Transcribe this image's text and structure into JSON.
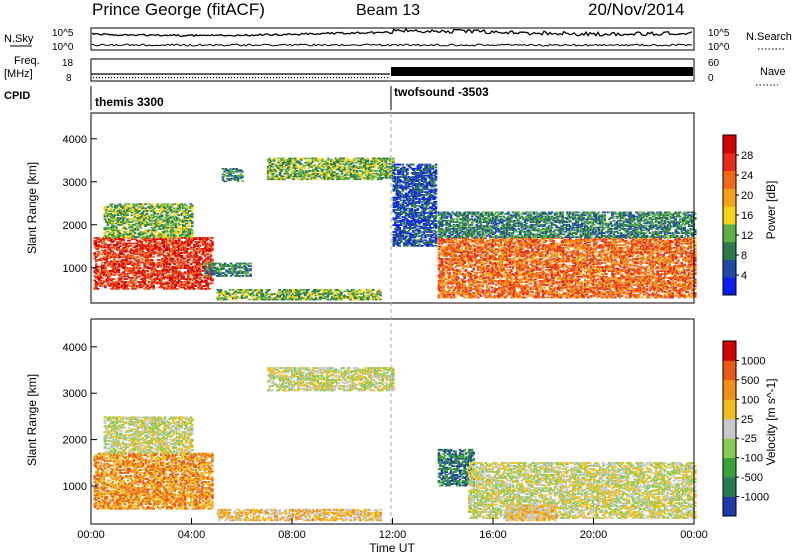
{
  "header": {
    "station": "Prince George (fitACF)",
    "beam": "Beam 13",
    "date": "20/Nov/2014"
  },
  "top_panels": {
    "nsky_label": "N.Sky",
    "nsky_ticks": [
      "10^5",
      "10^0"
    ],
    "nsearch_label": "N.Search",
    "nsearch_ticks": [
      "10^5",
      "10^0"
    ],
    "freq_label": "Freq.",
    "freq_unit": "[MHz]",
    "freq_ticks": [
      "18",
      "8"
    ],
    "nave_label": "Nave",
    "nave_ticks": [
      "60",
      "0"
    ],
    "cpid_label": "CPID",
    "cpid_modes": [
      {
        "name": "themis 3300",
        "start_hour": 0
      },
      {
        "name": "twofsound -3503",
        "start_hour": 12
      }
    ]
  },
  "chart_data": [
    {
      "type": "heatmap",
      "name": "power-panel",
      "ylabel": "Slant Range [km]",
      "ylim": [
        180,
        4600
      ],
      "yticks": [
        "4000",
        "3000",
        "2000",
        "1000"
      ],
      "xlim": [
        0,
        24
      ],
      "colorbar": {
        "label": "Power [dB]",
        "ticks": [
          "28",
          "24",
          "20",
          "16",
          "12",
          "8",
          "4"
        ],
        "colors": [
          "#0a1cf0",
          "#1f4aa8",
          "#2c7a4a",
          "#5cae46",
          "#f2d21a",
          "#f5a21a",
          "#f26a18",
          "#e82a1a",
          "#d40000"
        ]
      },
      "regions": [
        {
          "t0": 0.1,
          "t1": 4.8,
          "r0": 500,
          "r1": 1700,
          "level": 7
        },
        {
          "t0": 0.5,
          "t1": 4.0,
          "r0": 1700,
          "r1": 2500,
          "level": 3
        },
        {
          "t0": 4.5,
          "t1": 6.3,
          "r0": 800,
          "r1": 1100,
          "level": 2
        },
        {
          "t0": 5.0,
          "t1": 11.5,
          "r0": 250,
          "r1": 500,
          "level": 3
        },
        {
          "t0": 5.2,
          "t1": 6.0,
          "r0": 3000,
          "r1": 3300,
          "level": 2
        },
        {
          "t0": 7.0,
          "t1": 12.0,
          "r0": 3050,
          "r1": 3550,
          "level": 3
        },
        {
          "t0": 12.0,
          "t1": 13.7,
          "r0": 1500,
          "r1": 3400,
          "level": 1
        },
        {
          "t0": 13.8,
          "t1": 24.0,
          "r0": 300,
          "r1": 1700,
          "level": 6
        },
        {
          "t0": 13.8,
          "t1": 24.0,
          "r0": 1700,
          "r1": 2300,
          "level": 2
        }
      ]
    },
    {
      "type": "heatmap",
      "name": "velocity-panel",
      "ylabel": "Slant Range [km]",
      "ylim": [
        180,
        4600
      ],
      "yticks": [
        "4000",
        "3000",
        "2000",
        "1000"
      ],
      "xlim": [
        0,
        24
      ],
      "xticks": [
        "00:00",
        "04:00",
        "08:00",
        "12:00",
        "16:00",
        "20:00",
        "00:00"
      ],
      "xlabel": "Time UT",
      "colorbar": {
        "label": "Velocity [m s^-1]",
        "ticks": [
          "1000",
          "500",
          "100",
          "25",
          "-25",
          "-100",
          "-500",
          "-1000"
        ],
        "colors": [
          "#1f3aa8",
          "#2a7a52",
          "#3aa23a",
          "#88cc55",
          "#c8c8c8",
          "#f0c020",
          "#f0901a",
          "#e85a18",
          "#d40000"
        ]
      },
      "regions": [
        {
          "t0": 0.1,
          "t1": 4.8,
          "r0": 500,
          "r1": 1700,
          "level": 6
        },
        {
          "t0": 0.5,
          "t1": 4.0,
          "r0": 1700,
          "r1": 2500,
          "level": 4
        },
        {
          "t0": 5.0,
          "t1": 11.5,
          "r0": 250,
          "r1": 500,
          "level": 5
        },
        {
          "t0": 7.0,
          "t1": 12.0,
          "r0": 3050,
          "r1": 3550,
          "level": 4
        },
        {
          "t0": 13.8,
          "t1": 15.2,
          "r0": 1000,
          "r1": 1800,
          "level": 1
        },
        {
          "t0": 15.0,
          "t1": 24.0,
          "r0": 300,
          "r1": 1500,
          "level": 4
        },
        {
          "t0": 16.5,
          "t1": 18.5,
          "r0": 250,
          "r1": 600,
          "level": 5
        }
      ]
    }
  ]
}
